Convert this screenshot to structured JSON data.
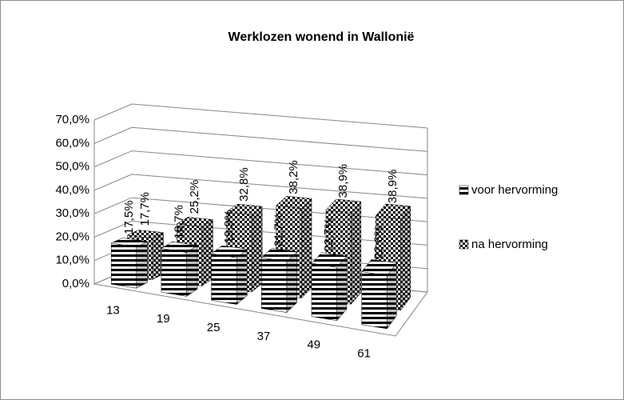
{
  "chart_data": {
    "type": "bar3d",
    "title": "Werklozen wonend in Wallonië",
    "categories": [
      "13",
      "19",
      "25",
      "37",
      "49",
      "61"
    ],
    "series": [
      {
        "name": "voor hervorming",
        "color": "#000000",
        "pattern": "stripes",
        "values": [
          17.5,
          18.7,
          19.9,
          21.7,
          22.7,
          22.6
        ],
        "value_labels": [
          "17,5%",
          "18,7%",
          "19,9%",
          "21,7%",
          "22,7%",
          "22,6%"
        ]
      },
      {
        "name": "na hervorming",
        "color": "#000000",
        "pattern": "checker",
        "values": [
          17.7,
          25.2,
          32.8,
          38.2,
          38.9,
          38.9
        ],
        "value_labels": [
          "17,7%",
          "25,2%",
          "32,8%",
          "38,2%",
          "38,9%",
          "38,9%"
        ]
      }
    ],
    "ylim": [
      0,
      70
    ],
    "yticks": [
      {
        "value": 0,
        "label": "0,0%"
      },
      {
        "value": 10,
        "label": "10,0%"
      },
      {
        "value": 20,
        "label": "20,0%"
      },
      {
        "value": 30,
        "label": "30,0%"
      },
      {
        "value": 40,
        "label": "40,0%"
      },
      {
        "value": 50,
        "label": "50,0%"
      },
      {
        "value": 60,
        "label": "60,0%"
      },
      {
        "value": 70,
        "label": "70,0%"
      }
    ],
    "grid": true,
    "legend": "right"
  }
}
